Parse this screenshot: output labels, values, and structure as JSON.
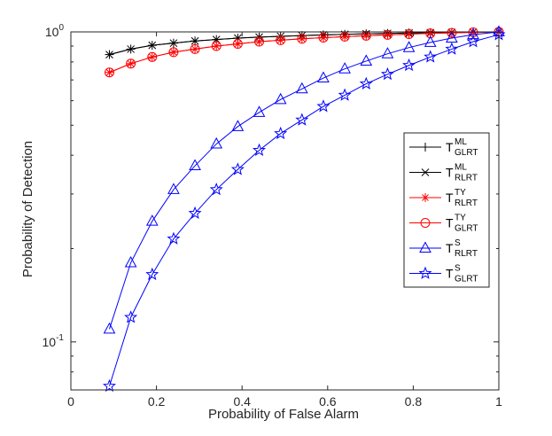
{
  "chart_data": {
    "type": "line",
    "xlabel": "Probability of False Alarm",
    "ylabel": "Probability of Detection",
    "x_scale": "linear",
    "y_scale": "log",
    "xlim": [
      0,
      1
    ],
    "ylim": [
      0.07,
      1
    ],
    "x_ticks": [
      0,
      0.2,
      0.4,
      0.6,
      0.8,
      1
    ],
    "x_tick_labels": [
      "0",
      "0.2",
      "0.4",
      "0.6",
      "0.8",
      "1"
    ],
    "y_ticks": [
      {
        "value": 0.1,
        "base": "10",
        "exp": "-1"
      },
      {
        "value": 1,
        "base": "10",
        "exp": "0"
      }
    ],
    "grid": false,
    "legend_position": "right",
    "x": [
      0.09,
      0.14,
      0.19,
      0.24,
      0.29,
      0.34,
      0.39,
      0.44,
      0.49,
      0.54,
      0.59,
      0.64,
      0.69,
      0.74,
      0.79,
      0.84,
      0.89,
      0.94,
      1.0
    ],
    "series": [
      {
        "name": "T_GLRT^ML",
        "main": "T",
        "sup": "ML",
        "sub": "GLRT",
        "color": "#000000",
        "marker": "plus",
        "values": [
          0.845,
          0.88,
          0.905,
          0.92,
          0.935,
          0.945,
          0.955,
          0.962,
          0.968,
          0.973,
          0.978,
          0.982,
          0.986,
          0.989,
          0.992,
          0.994,
          0.996,
          0.998,
          1.0
        ]
      },
      {
        "name": "T_RLRT^ML",
        "main": "T",
        "sup": "ML",
        "sub": "RLRT",
        "color": "#000000",
        "marker": "x",
        "values": [
          0.845,
          0.88,
          0.905,
          0.92,
          0.935,
          0.945,
          0.955,
          0.962,
          0.968,
          0.973,
          0.978,
          0.982,
          0.986,
          0.989,
          0.992,
          0.994,
          0.996,
          0.998,
          1.0
        ]
      },
      {
        "name": "T_RLRT^TY",
        "main": "T",
        "sup": "TY",
        "sub": "RLRT",
        "color": "#ff0000",
        "marker": "asterisk",
        "values": [
          0.74,
          0.79,
          0.83,
          0.86,
          0.88,
          0.9,
          0.915,
          0.93,
          0.94,
          0.95,
          0.958,
          0.965,
          0.972,
          0.978,
          0.984,
          0.989,
          0.993,
          0.997,
          1.0
        ]
      },
      {
        "name": "T_GLRT^TY",
        "main": "T",
        "sup": "TY",
        "sub": "GLRT",
        "color": "#ff0000",
        "marker": "circle",
        "values": [
          0.74,
          0.79,
          0.83,
          0.86,
          0.88,
          0.9,
          0.915,
          0.93,
          0.94,
          0.95,
          0.958,
          0.965,
          0.972,
          0.978,
          0.984,
          0.989,
          0.993,
          0.997,
          1.0
        ]
      },
      {
        "name": "T_RLRT^S",
        "main": "T",
        "sup": "S",
        "sub": "RLRT",
        "color": "#0000ff",
        "marker": "triangle",
        "values": [
          0.11,
          0.18,
          0.245,
          0.31,
          0.37,
          0.435,
          0.495,
          0.55,
          0.605,
          0.655,
          0.71,
          0.76,
          0.805,
          0.85,
          0.89,
          0.925,
          0.955,
          0.98,
          1.0
        ]
      },
      {
        "name": "T_GLRT^S",
        "main": "T",
        "sup": "S",
        "sub": "GLRT",
        "color": "#0000ff",
        "marker": "star",
        "values": [
          0.072,
          0.12,
          0.165,
          0.215,
          0.26,
          0.31,
          0.36,
          0.415,
          0.47,
          0.52,
          0.575,
          0.625,
          0.68,
          0.73,
          0.78,
          0.83,
          0.88,
          0.93,
          0.98
        ]
      }
    ]
  }
}
